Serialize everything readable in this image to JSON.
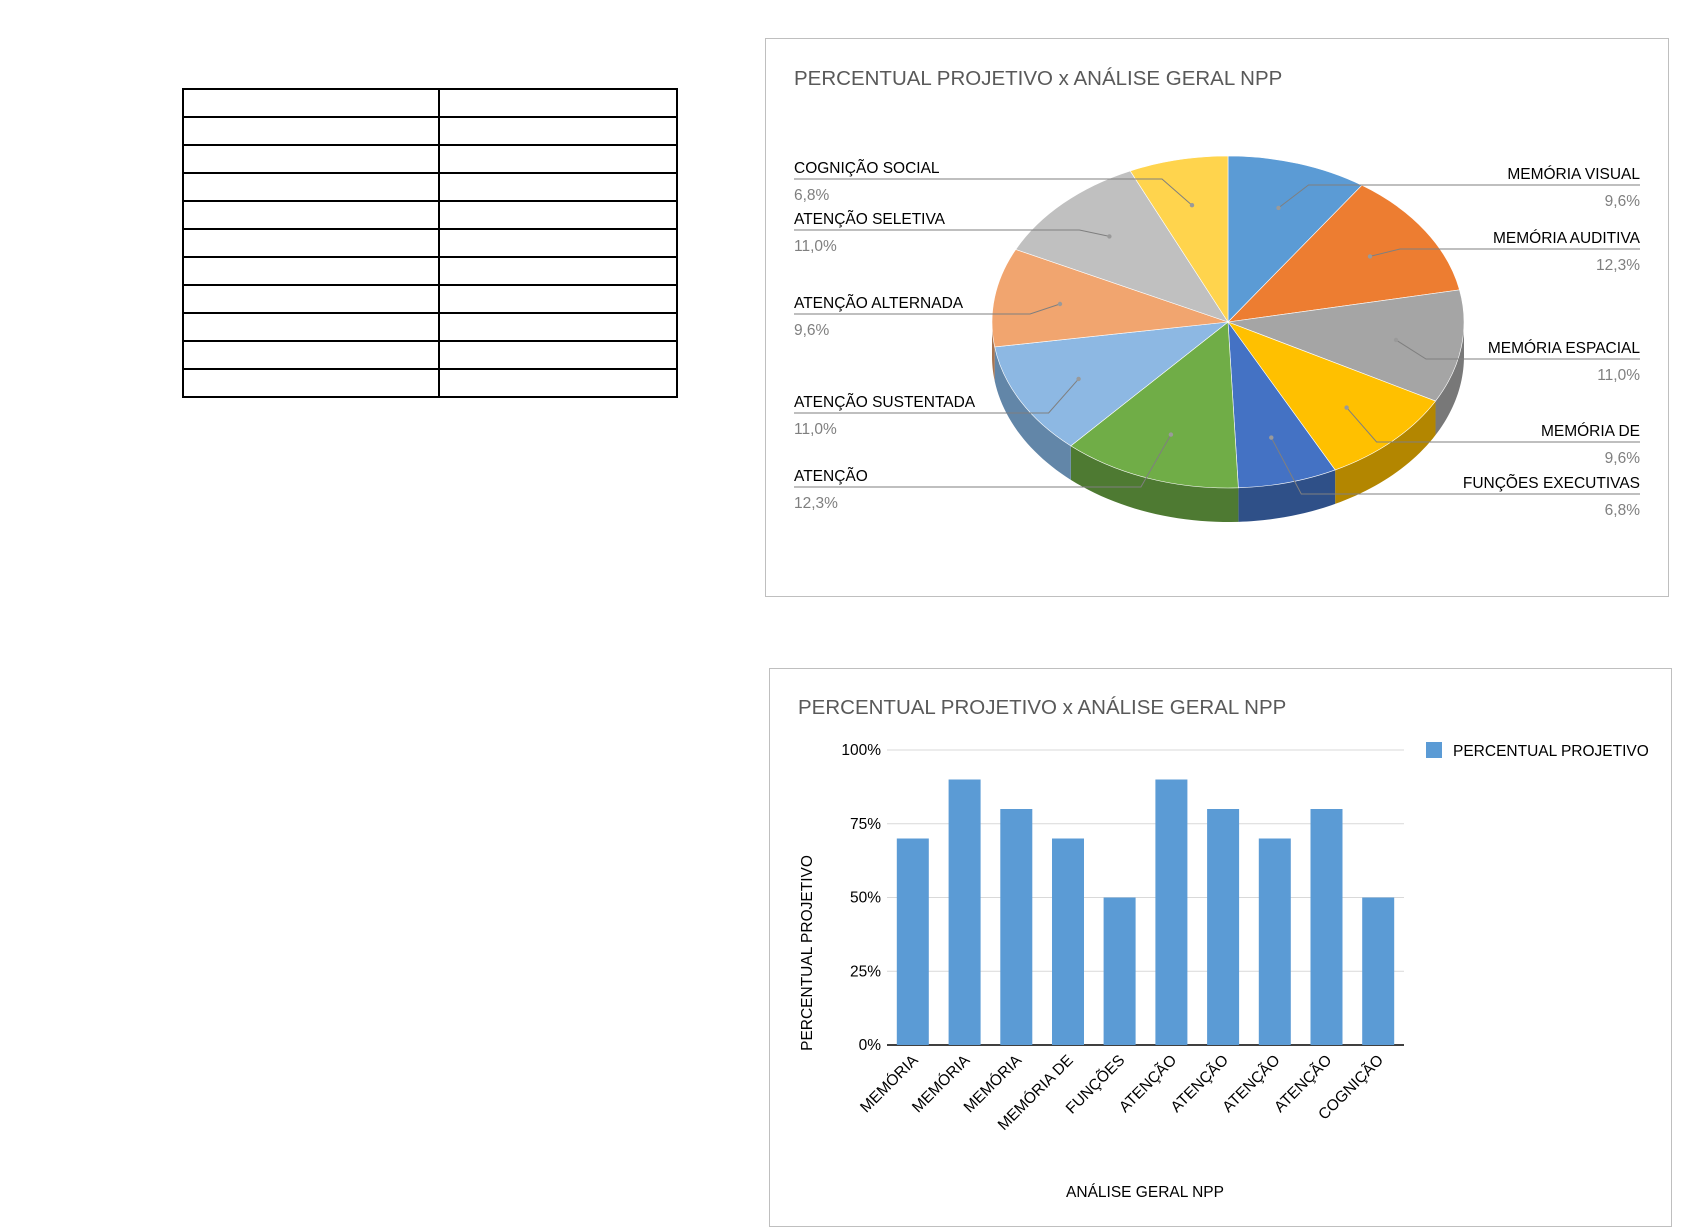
{
  "table": {
    "rows": 11,
    "cols": 2
  },
  "chart_data": [
    {
      "type": "pie",
      "title": "PERCENTUAL PROJETIVO x ANÁLISE GERAL NPP",
      "categories": [
        "MEMÓRIA VISUAL",
        "MEMÓRIA AUDITIVA",
        "MEMÓRIA ESPACIAL",
        "MEMÓRIA DE",
        "FUNÇÕES EXECUTIVAS",
        "ATENÇÃO",
        "ATENÇÃO SUSTENTADA",
        "ATENÇÃO ALTERNADA",
        "ATENÇÃO SELETIVA",
        "COGNIÇÃO SOCIAL"
      ],
      "values": [
        9.6,
        12.3,
        11.0,
        9.6,
        6.8,
        12.3,
        11.0,
        9.6,
        11.0,
        6.8
      ],
      "value_labels": [
        "9,6%",
        "12,3%",
        "11,0%",
        "9,6%",
        "6,8%",
        "12,3%",
        "11,0%",
        "9,6%",
        "11,0%",
        "6,8%"
      ],
      "colors": [
        "#5b9bd5",
        "#ed7d31",
        "#a5a5a5",
        "#ffc000",
        "#4472c4",
        "#70ad47",
        "#8db8e3",
        "#f1a56f",
        "#c0c0c0",
        "#ffd44d"
      ],
      "side_colors": [
        "#3e6f9c",
        "#a65a22",
        "#787878",
        "#b38600",
        "#2f5088",
        "#4e7a32",
        "#6286a8",
        "#a8744f",
        "#8a8a8a",
        "#b39536"
      ],
      "style": "3d"
    },
    {
      "type": "bar",
      "title": "PERCENTUAL PROJETIVO x ANÁLISE GERAL NPP",
      "categories": [
        "MEMÓRIA",
        "MEMÓRIA",
        "MEMÓRIA",
        "MEMÓRIA DE",
        "FUNÇÕES",
        "ATENÇÃO",
        "ATENÇÃO",
        "ATENÇÃO",
        "ATENÇÃO",
        "COGNIÇÃO"
      ],
      "series": [
        {
          "name": "PERCENTUAL PROJETIVO",
          "values": [
            70,
            90,
            80,
            70,
            50,
            90,
            80,
            70,
            80,
            50
          ],
          "color": "#5b9bd5"
        }
      ],
      "xlabel": "ANÁLISE GERAL NPP",
      "ylabel": "PERCENTUAL PROJETIVO",
      "ylim": [
        0,
        100
      ],
      "yticks": [
        0,
        25,
        50,
        75,
        100
      ],
      "ytick_labels": [
        "0%",
        "25%",
        "50%",
        "75%",
        "100%"
      ],
      "grid": true,
      "legend": "right"
    }
  ]
}
